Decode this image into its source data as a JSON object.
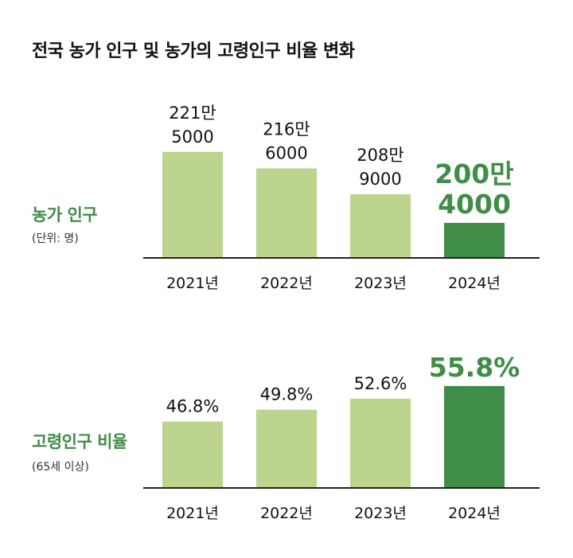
{
  "title": "전국 농가 인구 및 농가의 고령인구 비율 변화",
  "colors": {
    "bar_light": "#bcd48e",
    "bar_highlight": "#3f8d47",
    "label_highlight": "#3f8d47",
    "axis": "#222222"
  },
  "panels": [
    {
      "label": "농가 인구",
      "unit": "(단위: 명)"
    },
    {
      "label": "고령인구 비율",
      "unit": "(65세 이상)"
    }
  ],
  "chart_data": [
    {
      "type": "bar",
      "categories": [
        "2021년",
        "2022년",
        "2023년",
        "2024년"
      ],
      "values": [
        2215000,
        2166000,
        2089000,
        2004000
      ],
      "value_labels": [
        [
          "221만",
          "5000"
        ],
        [
          "216만",
          "6000"
        ],
        [
          "208만",
          "9000"
        ],
        [
          "200만",
          "4000"
        ]
      ],
      "highlight_index": 3,
      "ylim": [
        1900000,
        2250000
      ]
    },
    {
      "type": "bar",
      "categories": [
        "2021년",
        "2022년",
        "2023년",
        "2024년"
      ],
      "values": [
        46.8,
        49.8,
        52.6,
        55.8
      ],
      "value_labels": [
        [
          "46.8%"
        ],
        [
          "49.8%"
        ],
        [
          "52.6%"
        ],
        [
          "55.8%"
        ]
      ],
      "highlight_index": 3,
      "ylim": [
        30,
        58
      ]
    }
  ]
}
